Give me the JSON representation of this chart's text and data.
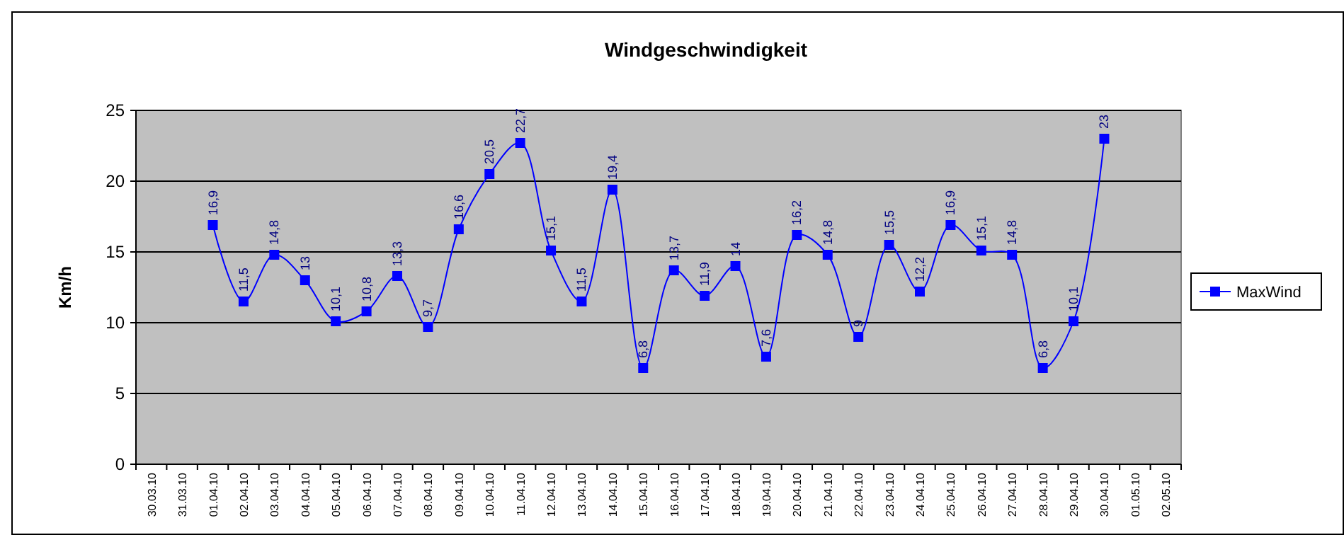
{
  "chart_data": {
    "type": "line",
    "title": "Windgeschwindigkeit",
    "ylabel": "Km/h",
    "categories": [
      "30.03.10",
      "31.03.10",
      "01.04.10",
      "02.04.10",
      "03.04.10",
      "04.04.10",
      "05.04.10",
      "06.04.10",
      "07.04.10",
      "08.04.10",
      "09.04.10",
      "10.04.10",
      "11.04.10",
      "12.04.10",
      "13.04.10",
      "14.04.10",
      "15.04.10",
      "16.04.10",
      "17.04.10",
      "18.04.10",
      "19.04.10",
      "20.04.10",
      "21.04.10",
      "22.04.10",
      "23.04.10",
      "24.04.10",
      "25.04.10",
      "26.04.10",
      "27.04.10",
      "28.04.10",
      "29.04.10",
      "30.04.10",
      "01.05.10",
      "02.05.10"
    ],
    "series": [
      {
        "name": "MaxWind",
        "color": "#0000ff",
        "values": [
          null,
          null,
          16.9,
          11.5,
          14.8,
          13,
          10.1,
          10.8,
          13.3,
          9.7,
          16.6,
          20.5,
          22.7,
          15.1,
          11.5,
          19.4,
          6.8,
          13.7,
          11.9,
          14,
          7.6,
          16.2,
          14.8,
          9,
          15.5,
          12.2,
          16.9,
          15.1,
          14.8,
          6.8,
          10.1,
          23,
          null,
          null
        ],
        "value_labels": [
          null,
          null,
          "16,9",
          "11,5",
          "14,8",
          "13",
          "10,1",
          "10,8",
          "13,3",
          "9,7",
          "16,6",
          "20,5",
          "22,7",
          "15,1",
          "11,5",
          "19,4",
          "6,8",
          "13,7",
          "11,9",
          "14",
          "7,6",
          "16,2",
          "14,8",
          "9",
          "15,5",
          "12,2",
          "16,9",
          "15,1",
          "14,8",
          "6,8",
          "10,1",
          "23",
          null,
          null
        ]
      }
    ],
    "ylim": [
      0,
      25
    ],
    "yticks": [
      0,
      5,
      10,
      15,
      20,
      25
    ],
    "grid": "y",
    "legend": "right",
    "marker": "square",
    "line_style": "solid"
  }
}
